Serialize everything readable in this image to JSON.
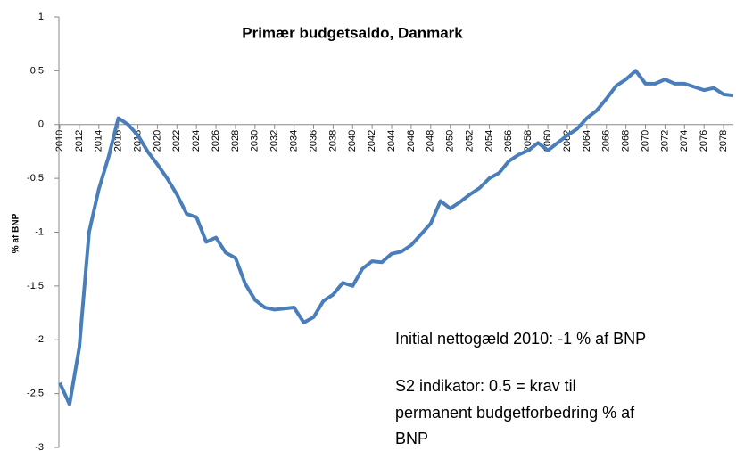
{
  "chart_data": {
    "type": "line",
    "title": "Primær budgetsaldo, Danmark",
    "ylabel": "% af BNP",
    "annotations": [
      "Initial nettogæld 2010: -1 % af BNP",
      "S2 indikator: 0.5  = krav til",
      "permanent budgetforbedring % af",
      "BNP"
    ],
    "x": [
      2010,
      2011,
      2012,
      2013,
      2014,
      2015,
      2016,
      2017,
      2018,
      2019,
      2020,
      2021,
      2022,
      2023,
      2024,
      2025,
      2026,
      2027,
      2028,
      2029,
      2030,
      2031,
      2032,
      2033,
      2034,
      2035,
      2036,
      2037,
      2038,
      2039,
      2040,
      2041,
      2042,
      2043,
      2044,
      2045,
      2046,
      2047,
      2048,
      2049,
      2050,
      2051,
      2052,
      2053,
      2054,
      2055,
      2056,
      2057,
      2058,
      2059,
      2060,
      2061,
      2062,
      2063,
      2064,
      2065,
      2066,
      2067,
      2068,
      2069,
      2070,
      2071,
      2072,
      2073,
      2074,
      2075,
      2076,
      2077,
      2078,
      2079
    ],
    "series": [
      {
        "color": "#4a7ebb",
        "values": [
          -2.4,
          -2.6,
          -2.07,
          -1.0,
          -0.6,
          -0.3,
          0.06,
          0.0,
          -0.1,
          -0.25,
          -0.37,
          -0.5,
          -0.65,
          -0.83,
          -0.86,
          -1.09,
          -1.05,
          -1.19,
          -1.24,
          -1.48,
          -1.63,
          -1.7,
          -1.72,
          -1.71,
          -1.7,
          -1.84,
          -1.79,
          -1.64,
          -1.58,
          -1.47,
          -1.5,
          -1.34,
          -1.27,
          -1.28,
          -1.2,
          -1.18,
          -1.12,
          -1.02,
          -0.92,
          -0.71,
          -0.78,
          -0.72,
          -0.65,
          -0.59,
          -0.5,
          -0.45,
          -0.34,
          -0.28,
          -0.24,
          -0.17,
          -0.24,
          -0.17,
          -0.1,
          -0.04,
          0.06,
          0.13,
          0.24,
          0.36,
          0.42,
          0.5,
          0.38,
          0.38,
          0.42,
          0.38,
          0.38,
          0.35,
          0.32,
          0.34,
          0.28,
          0.27
        ]
      }
    ],
    "xlim": [
      2010,
      2079
    ],
    "xticks": [
      2010,
      2012,
      2014,
      2016,
      2018,
      2020,
      2022,
      2024,
      2026,
      2028,
      2030,
      2032,
      2034,
      2036,
      2038,
      2040,
      2042,
      2044,
      2046,
      2048,
      2050,
      2052,
      2054,
      2056,
      2058,
      2060,
      2062,
      2064,
      2066,
      2068,
      2070,
      2072,
      2074,
      2076,
      2078
    ],
    "ylim": [
      -3,
      1
    ],
    "yticks": [
      1,
      {
        "value": 0.5,
        "label": "0,5"
      },
      0,
      {
        "value": -0.5,
        "label": "-0,5"
      },
      -1,
      {
        "value": -1.5,
        "label": "-1,5"
      },
      -2,
      {
        "value": -2.5,
        "label": "-2,5"
      },
      -3
    ]
  }
}
